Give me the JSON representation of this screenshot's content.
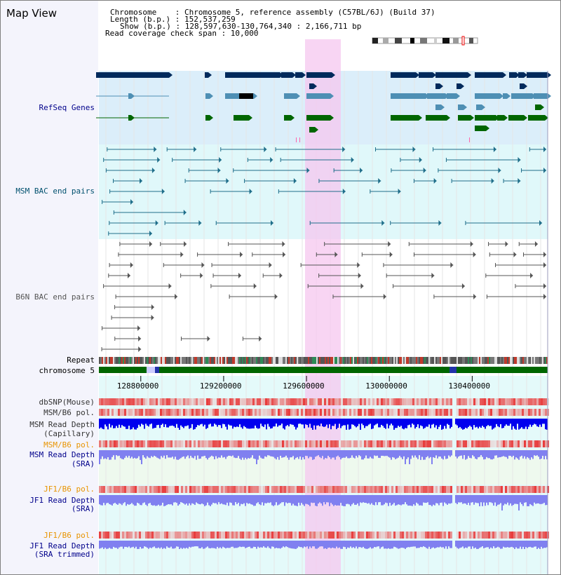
{
  "header": {
    "title": "Map View",
    "info_lines": [
      "Chromosome    : Chromosome 5, reference assembly (C57BL/6J) (Build 37)",
      "Length (b.p.) : 152,537,259",
      "Show (b.p.) : 128,597,630-130,764,340 : 2,166,711 bp",
      "Read coverage check span : 10,000"
    ]
  },
  "tracks": {
    "refseq": "RefSeq Genes",
    "msm_bac": "MSM BAC end pairs",
    "b6n_bac": "B6N BAC end pairs",
    "repeat": "Repeat",
    "chromosome": "chromosome 5",
    "dbsnp": "dbSNP(Mouse)",
    "msm_b6_pol": "MSM/B6 pol.",
    "msm_depth_cap_1": "MSM Read Depth",
    "msm_depth_cap_2": "(Capillary)",
    "msm_b6_pol_sra": "MSM/B6 pol.",
    "msm_depth_sra_1": "MSM Read Depth",
    "msm_depth_sra_2": "(SRA)",
    "jf1_b6_pol": "JF1/B6 pol.",
    "jf1_depth_sra_1": "JF1 Read Depth",
    "jf1_depth_sra_2": "(SRA)",
    "jf1_b6_pol_trim": "JF1/B6 pol.",
    "jf1_depth_trim_1": "JF1 Read Depth",
    "jf1_depth_trim_2": "(SRA trimmed)"
  },
  "axis": {
    "ticks": [
      "128800000",
      "129200000",
      "129600000",
      "130000000",
      "130400000"
    ],
    "tick_values": [
      128800000,
      129200000,
      129600000,
      130000000,
      130400000
    ],
    "view_start": 128597630,
    "view_end": 130764340
  },
  "colors": {
    "refseq_dark": "#002a5c",
    "refseq_mid": "#4e8fb4",
    "refseq_green": "#006600",
    "msm_bac_line": "#1f6e8a",
    "b6n_bac_line": "#555555",
    "highlight": "#f5c7ef",
    "depth_capillary": "#0000ee",
    "depth_sra": "#8080f0",
    "pol_red": "#e84a4a",
    "label_navy": "#00008b",
    "label_orange": "#e89400",
    "label_teal": "#00506e"
  }
}
